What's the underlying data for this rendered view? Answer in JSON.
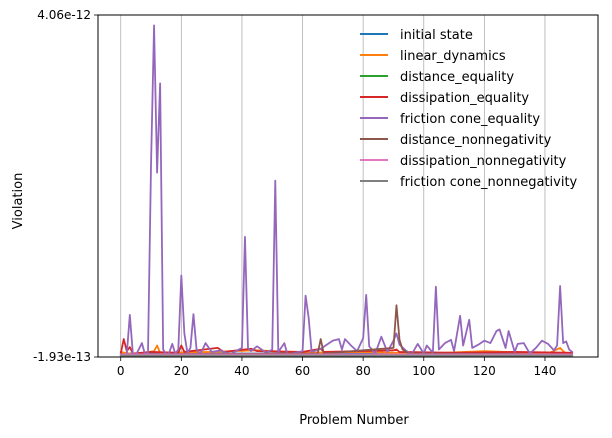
{
  "chart_data": {
    "type": "line",
    "xlabel": "Problem Number",
    "ylabel": "Violation",
    "xlim": [
      -7.5,
      157.5
    ],
    "ylim": [
      -1.93e-13,
      4.06e-12
    ],
    "x_ticks": [
      0,
      20,
      40,
      60,
      80,
      100,
      120,
      140
    ],
    "x_tick_labels": [
      "0",
      "20",
      "40",
      "60",
      "80",
      "100",
      "120",
      "140"
    ],
    "y_ticks": [
      -1.93e-13,
      4.06e-12
    ],
    "y_tick_labels": [
      "-1.93e-13",
      "4.06e-12"
    ],
    "grid": "x-only",
    "legend_position": "top-right",
    "x_range": [
      0,
      149
    ],
    "series": [
      {
        "name": "initial state",
        "color": "#1f77b4",
        "points": [
          [
            0,
            -1.5e-13
          ],
          [
            149,
            -1.5e-13
          ]
        ]
      },
      {
        "name": "linear_dynamics",
        "color": "#ff7f0e",
        "points": [
          [
            0,
            -1.3e-13
          ],
          [
            4,
            -1.6e-13
          ],
          [
            11,
            -1.2e-13
          ],
          [
            12,
            -5e-14
          ],
          [
            13,
            -1.4e-13
          ],
          [
            30,
            -1.3e-13
          ],
          [
            45,
            -1.1e-13
          ],
          [
            60,
            -1.4e-13
          ],
          [
            80,
            -1.3e-13
          ],
          [
            100,
            -1.5e-13
          ],
          [
            120,
            -1.2e-13
          ],
          [
            141,
            -1.5e-13
          ],
          [
            145,
            -8e-14
          ],
          [
            146,
            -1.2e-13
          ],
          [
            147,
            -1.5e-13
          ],
          [
            149,
            -1.4e-13
          ]
        ]
      },
      {
        "name": "distance_equality",
        "color": "#2ca02c",
        "points": [
          [
            0,
            -1.7e-13
          ],
          [
            149,
            -1.7e-13
          ]
        ]
      },
      {
        "name": "dissipation_equality",
        "color": "#d62728",
        "points": [
          [
            0,
            -1.5e-13
          ],
          [
            1,
            3e-14
          ],
          [
            2,
            -1.2e-13
          ],
          [
            3,
            -7e-14
          ],
          [
            4,
            -1.5e-13
          ],
          [
            10,
            -1.3e-13
          ],
          [
            19,
            -1.4e-13
          ],
          [
            20,
            -5e-14
          ],
          [
            21,
            -1.3e-13
          ],
          [
            32,
            -8e-14
          ],
          [
            34,
            -1.3e-13
          ],
          [
            43,
            -9e-14
          ],
          [
            45,
            -1.2e-13
          ],
          [
            60,
            -1.3e-13
          ],
          [
            66,
            -9e-14
          ],
          [
            67,
            -1.3e-13
          ],
          [
            90,
            -1.1e-13
          ],
          [
            91,
            -1e-13
          ],
          [
            92,
            -1.3e-13
          ],
          [
            110,
            -1.4e-13
          ],
          [
            130,
            -1.3e-13
          ],
          [
            149,
            -1.4e-13
          ]
        ]
      },
      {
        "name": "friction cone_equality",
        "color": "#9467bd",
        "points": [
          [
            0,
            -1.8e-13
          ],
          [
            2,
            -1.6e-13
          ],
          [
            3,
            3.3e-13
          ],
          [
            4,
            -1.5e-13
          ],
          [
            5,
            -1.7e-13
          ],
          [
            7,
            -2e-14
          ],
          [
            8,
            -1.6e-13
          ],
          [
            9,
            -1.4e-13
          ],
          [
            10,
            2.2e-12
          ],
          [
            11,
            3.93e-12
          ],
          [
            12,
            2.1e-12
          ],
          [
            13,
            3.21e-12
          ],
          [
            14,
            -1e-13
          ],
          [
            15,
            -1.6e-13
          ],
          [
            16,
            -1.4e-13
          ],
          [
            17,
            -3e-14
          ],
          [
            18,
            -1.5e-13
          ],
          [
            19,
            -1e-13
          ],
          [
            20,
            8.2e-13
          ],
          [
            21,
            1e-13
          ],
          [
            22,
            -1.4e-13
          ],
          [
            23,
            -8e-14
          ],
          [
            24,
            3.4e-13
          ],
          [
            25,
            -9e-14
          ],
          [
            26,
            -1.6e-13
          ],
          [
            27,
            -1e-13
          ],
          [
            28,
            -2e-14
          ],
          [
            30,
            -1.3e-13
          ],
          [
            33,
            -1.1e-13
          ],
          [
            36,
            -1.6e-13
          ],
          [
            40,
            -8e-14
          ],
          [
            41,
            1.3e-12
          ],
          [
            42,
            -8e-14
          ],
          [
            43,
            -1.2e-13
          ],
          [
            45,
            -6e-14
          ],
          [
            48,
            -1.4e-13
          ],
          [
            50,
            -1e-13
          ],
          [
            51,
            2e-12
          ],
          [
            52,
            -1.3e-13
          ],
          [
            54,
            -2e-14
          ],
          [
            55,
            -1.6e-13
          ],
          [
            60,
            -1.2e-13
          ],
          [
            61,
            5.7e-13
          ],
          [
            62,
            3e-13
          ],
          [
            63,
            -1.3e-13
          ],
          [
            66,
            -9e-14
          ],
          [
            70,
            1e-14
          ],
          [
            72,
            3e-14
          ],
          [
            73,
            -1e-13
          ],
          [
            74,
            3e-14
          ],
          [
            76,
            -5e-14
          ],
          [
            78,
            -1.2e-13
          ],
          [
            80,
            4e-14
          ],
          [
            81,
            5.8e-13
          ],
          [
            82,
            -6e-14
          ],
          [
            84,
            -1.5e-13
          ],
          [
            86,
            6e-14
          ],
          [
            88,
            -1.3e-13
          ],
          [
            90,
            1e-14
          ],
          [
            91,
            1e-13
          ],
          [
            92,
            -4e-14
          ],
          [
            94,
            -1.1e-13
          ],
          [
            96,
            -1.6e-13
          ],
          [
            98,
            -3e-14
          ],
          [
            100,
            -1.5e-13
          ],
          [
            101,
            -5e-14
          ],
          [
            103,
            -1.4e-13
          ],
          [
            104,
            6.8e-13
          ],
          [
            105,
            -1e-13
          ],
          [
            107,
            -2e-14
          ],
          [
            109,
            2e-14
          ],
          [
            110,
            -1.2e-13
          ],
          [
            112,
            3.2e-13
          ],
          [
            113,
            -5e-14
          ],
          [
            115,
            2.7e-13
          ],
          [
            116,
            -8e-14
          ],
          [
            118,
            -4e-14
          ],
          [
            120,
            1e-14
          ],
          [
            122,
            -2e-14
          ],
          [
            124,
            1.3e-13
          ],
          [
            125,
            1.5e-13
          ],
          [
            127,
            -8e-14
          ],
          [
            128,
            1.3e-13
          ],
          [
            130,
            -1.3e-13
          ],
          [
            131,
            -3e-14
          ],
          [
            133,
            -2e-14
          ],
          [
            135,
            -1.5e-13
          ],
          [
            137,
            -8e-14
          ],
          [
            139,
            1e-14
          ],
          [
            141,
            -3e-14
          ],
          [
            143,
            -1.1e-13
          ],
          [
            144,
            -5e-14
          ],
          [
            145,
            6.9e-13
          ],
          [
            146,
            -2e-14
          ],
          [
            147,
            0.0
          ],
          [
            148,
            -1e-13
          ],
          [
            149,
            -1.3e-13
          ]
        ]
      },
      {
        "name": "distance_nonnegativity",
        "color": "#8c564b",
        "points": [
          [
            0,
            -1.6e-13
          ],
          [
            65,
            -1.5e-13
          ],
          [
            66,
            3e-14
          ],
          [
            67,
            -1.5e-13
          ],
          [
            90,
            -8e-14
          ],
          [
            91,
            4.5e-13
          ],
          [
            92,
            2e-14
          ],
          [
            93,
            -1e-13
          ],
          [
            95,
            -1.5e-13
          ],
          [
            149,
            -1.6e-13
          ]
        ]
      },
      {
        "name": "dissipation_nonnegativity",
        "color": "#e377c2",
        "points": [
          [
            0,
            -1.6e-13
          ],
          [
            149,
            -1.6e-13
          ]
        ]
      },
      {
        "name": "friction cone_nonnegativity",
        "color": "#7f7f7f",
        "points": [
          [
            0,
            -1.75e-13
          ],
          [
            149,
            -1.75e-13
          ]
        ]
      }
    ]
  }
}
